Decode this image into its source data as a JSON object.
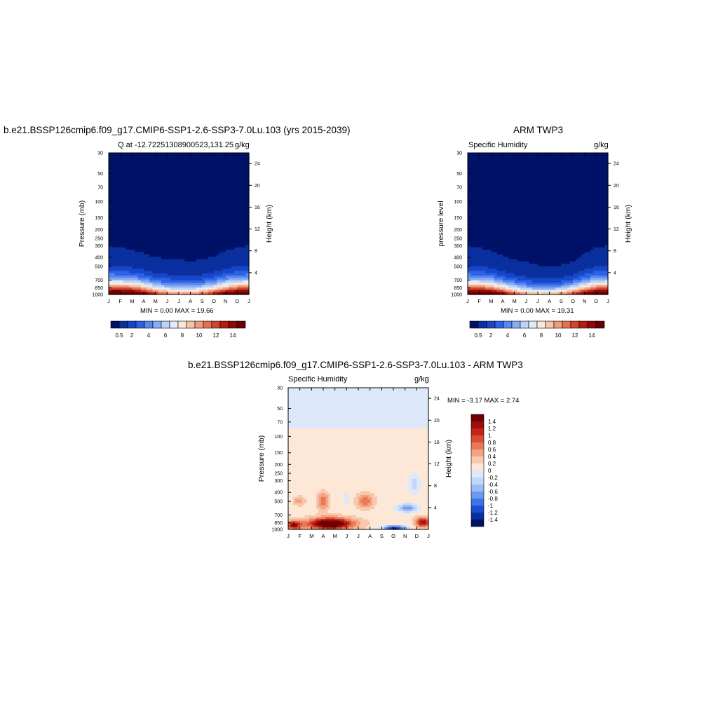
{
  "panels": [
    {
      "title": "b.e21.BSSP126cmip6.f09_g17.CMIP6-SSP1-2.6-SSP3-7.0Lu.103 (yrs 2015-2039)",
      "left_label": "Q at -12.72251308900523,131.25",
      "right_label": "g/kg",
      "ylabel": "Pressure (mb)",
      "y2label": "Height (km)",
      "stats": "MIN =   0.00 MAX =  19.66"
    },
    {
      "title": "ARM TWP3",
      "left_label": "Specific Humidity",
      "right_label": "g/kg",
      "ylabel": "pressure level",
      "y2label": "Height (km)",
      "stats": "MIN =   0.00 MAX =  19.31"
    },
    {
      "title": "b.e21.BSSP126cmip6.f09_g17.CMIP6-SSP1-2.6-SSP3-7.0Lu.103 - ARM TWP3",
      "left_label": "Specific Humidity",
      "right_label": "g/kg",
      "ylabel": "Pressure (mb)",
      "y2label": "Height (km)",
      "stats": "MIN =  -3.17 MAX =   2.74"
    }
  ],
  "chart_data": [
    {
      "type": "heatmap",
      "title": "b.e21.BSSP126cmip6.f09_g17.CMIP6-SSP1-2.6-SSP3-7.0Lu.103 (yrs 2015-2039)",
      "variable": "Q at -12.72251308900523,131.25",
      "units": "g/kg",
      "x_ticks": [
        "J",
        "F",
        "M",
        "A",
        "M",
        "J",
        "J",
        "A",
        "S",
        "O",
        "N",
        "D",
        "J"
      ],
      "y_ticks": [
        "30",
        "50",
        "70",
        "100",
        "150",
        "200",
        "250",
        "300",
        "400",
        "500",
        "700",
        "850",
        "1000"
      ],
      "y2_ticks": [
        "24",
        "20",
        "16",
        "12",
        "8",
        "4"
      ],
      "ylabel": "Pressure (mb)",
      "y2label": "Height (km)",
      "colorbar_ticks": [
        "0.5",
        "2",
        "4",
        "6",
        "8",
        "10",
        "12",
        "14"
      ],
      "min": 0.0,
      "max": 19.66,
      "months": [
        "J",
        "F",
        "M",
        "A",
        "M",
        "J",
        "J",
        "A",
        "S",
        "O",
        "N",
        "D",
        "J"
      ],
      "surface_q": [
        19.0,
        19.2,
        18.6,
        16.5,
        13.5,
        11.5,
        10.5,
        10.8,
        12.0,
        14.0,
        16.5,
        18.5,
        19.0
      ],
      "moist_top_mb": [
        300,
        310,
        330,
        360,
        400,
        410,
        420,
        440,
        420,
        390,
        340,
        310,
        300
      ]
    },
    {
      "type": "heatmap",
      "title": "ARM TWP3",
      "variable": "Specific Humidity",
      "units": "g/kg",
      "x_ticks": [
        "J",
        "F",
        "M",
        "A",
        "M",
        "J",
        "J",
        "A",
        "S",
        "O",
        "N",
        "D",
        "J"
      ],
      "y_ticks": [
        "30",
        "50",
        "70",
        "100",
        "150",
        "200",
        "250",
        "300",
        "400",
        "500",
        "700",
        "850",
        "1000"
      ],
      "y2_ticks": [
        "24",
        "20",
        "16",
        "12",
        "8",
        "4"
      ],
      "ylabel": "pressure level",
      "y2label": "Height (km)",
      "colorbar_ticks": [
        "0.5",
        "2",
        "4",
        "6",
        "8",
        "10",
        "12",
        "14"
      ],
      "min": 0.0,
      "max": 19.31,
      "months": [
        "J",
        "F",
        "M",
        "A",
        "M",
        "J",
        "J",
        "A",
        "S",
        "O",
        "N",
        "D",
        "J"
      ],
      "surface_q": [
        18.8,
        19.0,
        18.0,
        15.5,
        12.5,
        10.5,
        9.5,
        9.8,
        11.0,
        13.0,
        16.0,
        18.3,
        18.8
      ],
      "moist_top_mb": [
        300,
        310,
        340,
        380,
        420,
        450,
        480,
        500,
        480,
        440,
        360,
        310,
        300
      ]
    },
    {
      "type": "heatmap",
      "title": "b.e21.BSSP126cmip6.f09_g17.CMIP6-SSP1-2.6-SSP3-7.0Lu.103 - ARM TWP3",
      "variable": "Specific Humidity",
      "units": "g/kg",
      "x_ticks": [
        "J",
        "F",
        "M",
        "A",
        "M",
        "J",
        "J",
        "A",
        "S",
        "O",
        "N",
        "D",
        "J"
      ],
      "y_ticks": [
        "30",
        "50",
        "70",
        "100",
        "150",
        "200",
        "250",
        "300",
        "400",
        "500",
        "700",
        "850",
        "1000"
      ],
      "y2_ticks": [
        "24",
        "20",
        "16",
        "12",
        "8",
        "4"
      ],
      "ylabel": "Pressure (mb)",
      "y2label": "Height (km)",
      "colorbar_ticks": [
        "1.4",
        "1.2",
        "1",
        "0.8",
        "0.6",
        "0.4",
        "0.2",
        "0",
        "-0.2",
        "-0.4",
        "-0.6",
        "-0.8",
        "-1",
        "-1.2",
        "-1.4"
      ],
      "min": -3.17,
      "max": 2.74
    }
  ],
  "colors": {
    "seq": [
      "#001268",
      "#0a2f9e",
      "#1746c8",
      "#2d62e6",
      "#5888ef",
      "#88aef4",
      "#bcd2f7",
      "#e2ebf8",
      "#fde7d8",
      "#f7c3a6",
      "#f09b7d",
      "#e5704f",
      "#d0452b",
      "#b51c14",
      "#8d0a0a",
      "#6a0000"
    ],
    "div": [
      "#001268",
      "#0a2f9e",
      "#1c4fd0",
      "#3f73ea",
      "#6f98f0",
      "#9bbdf5",
      "#c2d7f7",
      "#dde9fb",
      "#fde8d8",
      "#f8c8ad",
      "#f3a283",
      "#e97958",
      "#d94c30",
      "#bf2617",
      "#9d0d0c",
      "#700000"
    ]
  }
}
